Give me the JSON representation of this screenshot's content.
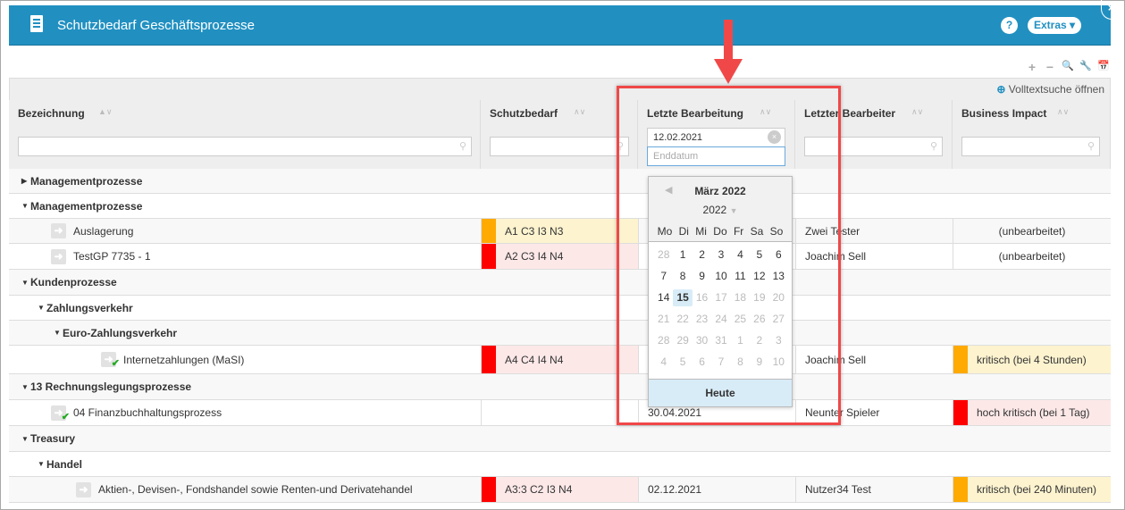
{
  "window": {
    "title": "Schutzbedarf Geschäftsprozesse",
    "help": "?",
    "extras": "Extras ▾",
    "close": "×"
  },
  "toolbar": {
    "add": "+",
    "remove": "−",
    "search": "🔍",
    "settings": "🔧",
    "calendar": "📅"
  },
  "fulltext": "Volltextsuche öffnen",
  "columns": [
    {
      "label": "Bezeichnung",
      "filter": ""
    },
    {
      "label": "Schutzbedarf",
      "filter": ""
    },
    {
      "label": "Letzte Bearbeitung",
      "filter_start": "12.02.2021",
      "filter_end_placeholder": "Enddatum"
    },
    {
      "label": "Letzter Bearbeiter",
      "filter": ""
    },
    {
      "label": "Business Impact",
      "filter": ""
    }
  ],
  "colors": {
    "header": "#2190c1",
    "orange": "#ffaa00",
    "red": "#ff0000",
    "orange_bg": "#fdf3cf",
    "red_bg": "#fde8e8"
  },
  "rows": [
    {
      "type": "group",
      "level": 0,
      "expanded": false,
      "label": "Managementprozesse"
    },
    {
      "type": "group",
      "level": 0,
      "expanded": true,
      "label": "Managementprozesse"
    },
    {
      "type": "item",
      "level": 1,
      "label": "Auslagerung",
      "check": false,
      "schutz": "A1 C3 I3 N3",
      "schutz_level": "orange",
      "date": "",
      "user": "Zwei Tester",
      "impact": "(unbearbeitet)",
      "impact_level": ""
    },
    {
      "type": "item",
      "level": 1,
      "label": "TestGP 7735 - 1",
      "check": false,
      "schutz": "A2 C3 I4 N4",
      "schutz_level": "red",
      "date": "",
      "user": "Joachim Sell",
      "impact": "(unbearbeitet)",
      "impact_level": ""
    },
    {
      "type": "group",
      "level": 0,
      "expanded": true,
      "label": "Kundenprozesse"
    },
    {
      "type": "group",
      "level": 1,
      "expanded": true,
      "label": "Zahlungsverkehr"
    },
    {
      "type": "group",
      "level": 2,
      "expanded": true,
      "label": "Euro-Zahlungsverkehr"
    },
    {
      "type": "item",
      "level": 3,
      "label": "Internetzahlungen (MaSI)",
      "check": true,
      "schutz": "A4 C4 I4 N4",
      "schutz_level": "red",
      "date": "",
      "user": "Joachim Sell",
      "impact": "kritisch (bei 4 Stunden)",
      "impact_level": "orange"
    },
    {
      "type": "group",
      "level": 0,
      "expanded": true,
      "label": "13 Rechnungslegungsprozesse"
    },
    {
      "type": "item",
      "level": 1,
      "label": "04 Finanzbuchhaltungsprozess",
      "check": true,
      "schutz": "",
      "schutz_level": "",
      "date": "30.04.2021",
      "user": "Neunter Spieler",
      "impact": "hoch kritisch (bei 1 Tag)",
      "impact_level": "red"
    },
    {
      "type": "group",
      "level": 0,
      "expanded": true,
      "label": "Treasury"
    },
    {
      "type": "group",
      "level": 1,
      "expanded": true,
      "label": "Handel"
    },
    {
      "type": "item",
      "level": 2,
      "label": "Aktien-, Devisen-, Fondshandel sowie Renten-und Derivatehandel",
      "check": false,
      "schutz": "A3:3 C2 I3 N4",
      "schutz_level": "red",
      "date": "02.12.2021",
      "user": "Nutzer34 Test",
      "impact": "kritisch (bei 240 Minuten)",
      "impact_level": "orange"
    }
  ],
  "calendar": {
    "month": "März 2022",
    "year": "2022",
    "weekdays": [
      "Mo",
      "Di",
      "Mi",
      "Do",
      "Fr",
      "Sa",
      "So"
    ],
    "days": [
      {
        "d": "28",
        "o": true
      },
      {
        "d": "1"
      },
      {
        "d": "2"
      },
      {
        "d": "3"
      },
      {
        "d": "4"
      },
      {
        "d": "5"
      },
      {
        "d": "6"
      },
      {
        "d": "7"
      },
      {
        "d": "8"
      },
      {
        "d": "9"
      },
      {
        "d": "10"
      },
      {
        "d": "11"
      },
      {
        "d": "12"
      },
      {
        "d": "13"
      },
      {
        "d": "14"
      },
      {
        "d": "15",
        "sel": true
      },
      {
        "d": "16",
        "o": true
      },
      {
        "d": "17",
        "o": true
      },
      {
        "d": "18",
        "o": true
      },
      {
        "d": "19",
        "o": true
      },
      {
        "d": "20",
        "o": true
      },
      {
        "d": "21",
        "o": true
      },
      {
        "d": "22",
        "o": true
      },
      {
        "d": "23",
        "o": true
      },
      {
        "d": "24",
        "o": true
      },
      {
        "d": "25",
        "o": true
      },
      {
        "d": "26",
        "o": true
      },
      {
        "d": "27",
        "o": true
      },
      {
        "d": "28",
        "o": true
      },
      {
        "d": "29",
        "o": true
      },
      {
        "d": "30",
        "o": true
      },
      {
        "d": "31",
        "o": true
      },
      {
        "d": "1",
        "o": true
      },
      {
        "d": "2",
        "o": true
      },
      {
        "d": "3",
        "o": true
      },
      {
        "d": "4",
        "o": true
      },
      {
        "d": "5",
        "o": true
      },
      {
        "d": "6",
        "o": true
      },
      {
        "d": "7",
        "o": true
      },
      {
        "d": "8",
        "o": true
      },
      {
        "d": "9",
        "o": true
      },
      {
        "d": "10",
        "o": true
      }
    ],
    "today": "Heute"
  }
}
